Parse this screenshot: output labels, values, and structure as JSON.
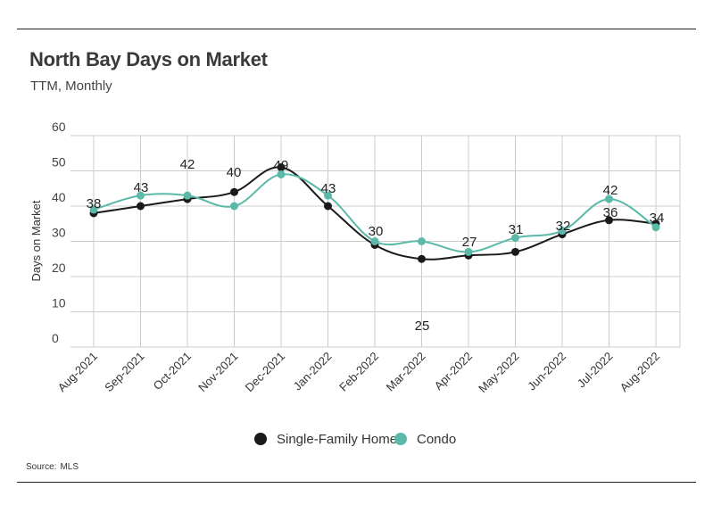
{
  "header": {
    "title": "North Bay Days on Market",
    "subtitle": "TTM, Monthly"
  },
  "footer": {
    "source_label": "Source:",
    "source_value": "MLS"
  },
  "colors": {
    "single_family": "#1a1a1a",
    "condo": "#5bb9a9",
    "grid": "#cccccc",
    "text": "#333333"
  },
  "chart_data": {
    "type": "line",
    "title": "North Bay Days on Market",
    "subtitle": "TTM, Monthly",
    "xlabel": "",
    "ylabel": "Days on Market",
    "ylim": [
      0,
      60
    ],
    "yticks": [
      0,
      10,
      20,
      30,
      40,
      50,
      60
    ],
    "grid": true,
    "legend_position": "bottom",
    "categories": [
      "Aug-2021",
      "Sep-2021",
      "Oct-2021",
      "Nov-2021",
      "Dec-2021",
      "Jan-2022",
      "Feb-2022",
      "Mar-2022",
      "Apr-2022",
      "May-2022",
      "Jun-2022",
      "Jul-2022",
      "Aug-2022"
    ],
    "series": [
      {
        "name": "Single-Family Home",
        "color": "#1a1a1a",
        "values": [
          38,
          40,
          42,
          44,
          51,
          40,
          29,
          25,
          26,
          27,
          32,
          36,
          35
        ]
      },
      {
        "name": "Condo",
        "color": "#5bb9a9",
        "values": [
          39,
          43,
          43,
          40,
          49,
          43,
          30,
          30,
          27,
          31,
          33,
          42,
          34
        ]
      }
    ],
    "data_labels": [
      38,
      43,
      42,
      40,
      49,
      43,
      30,
      25,
      27,
      31,
      32,
      42,
      36,
      34
    ]
  }
}
